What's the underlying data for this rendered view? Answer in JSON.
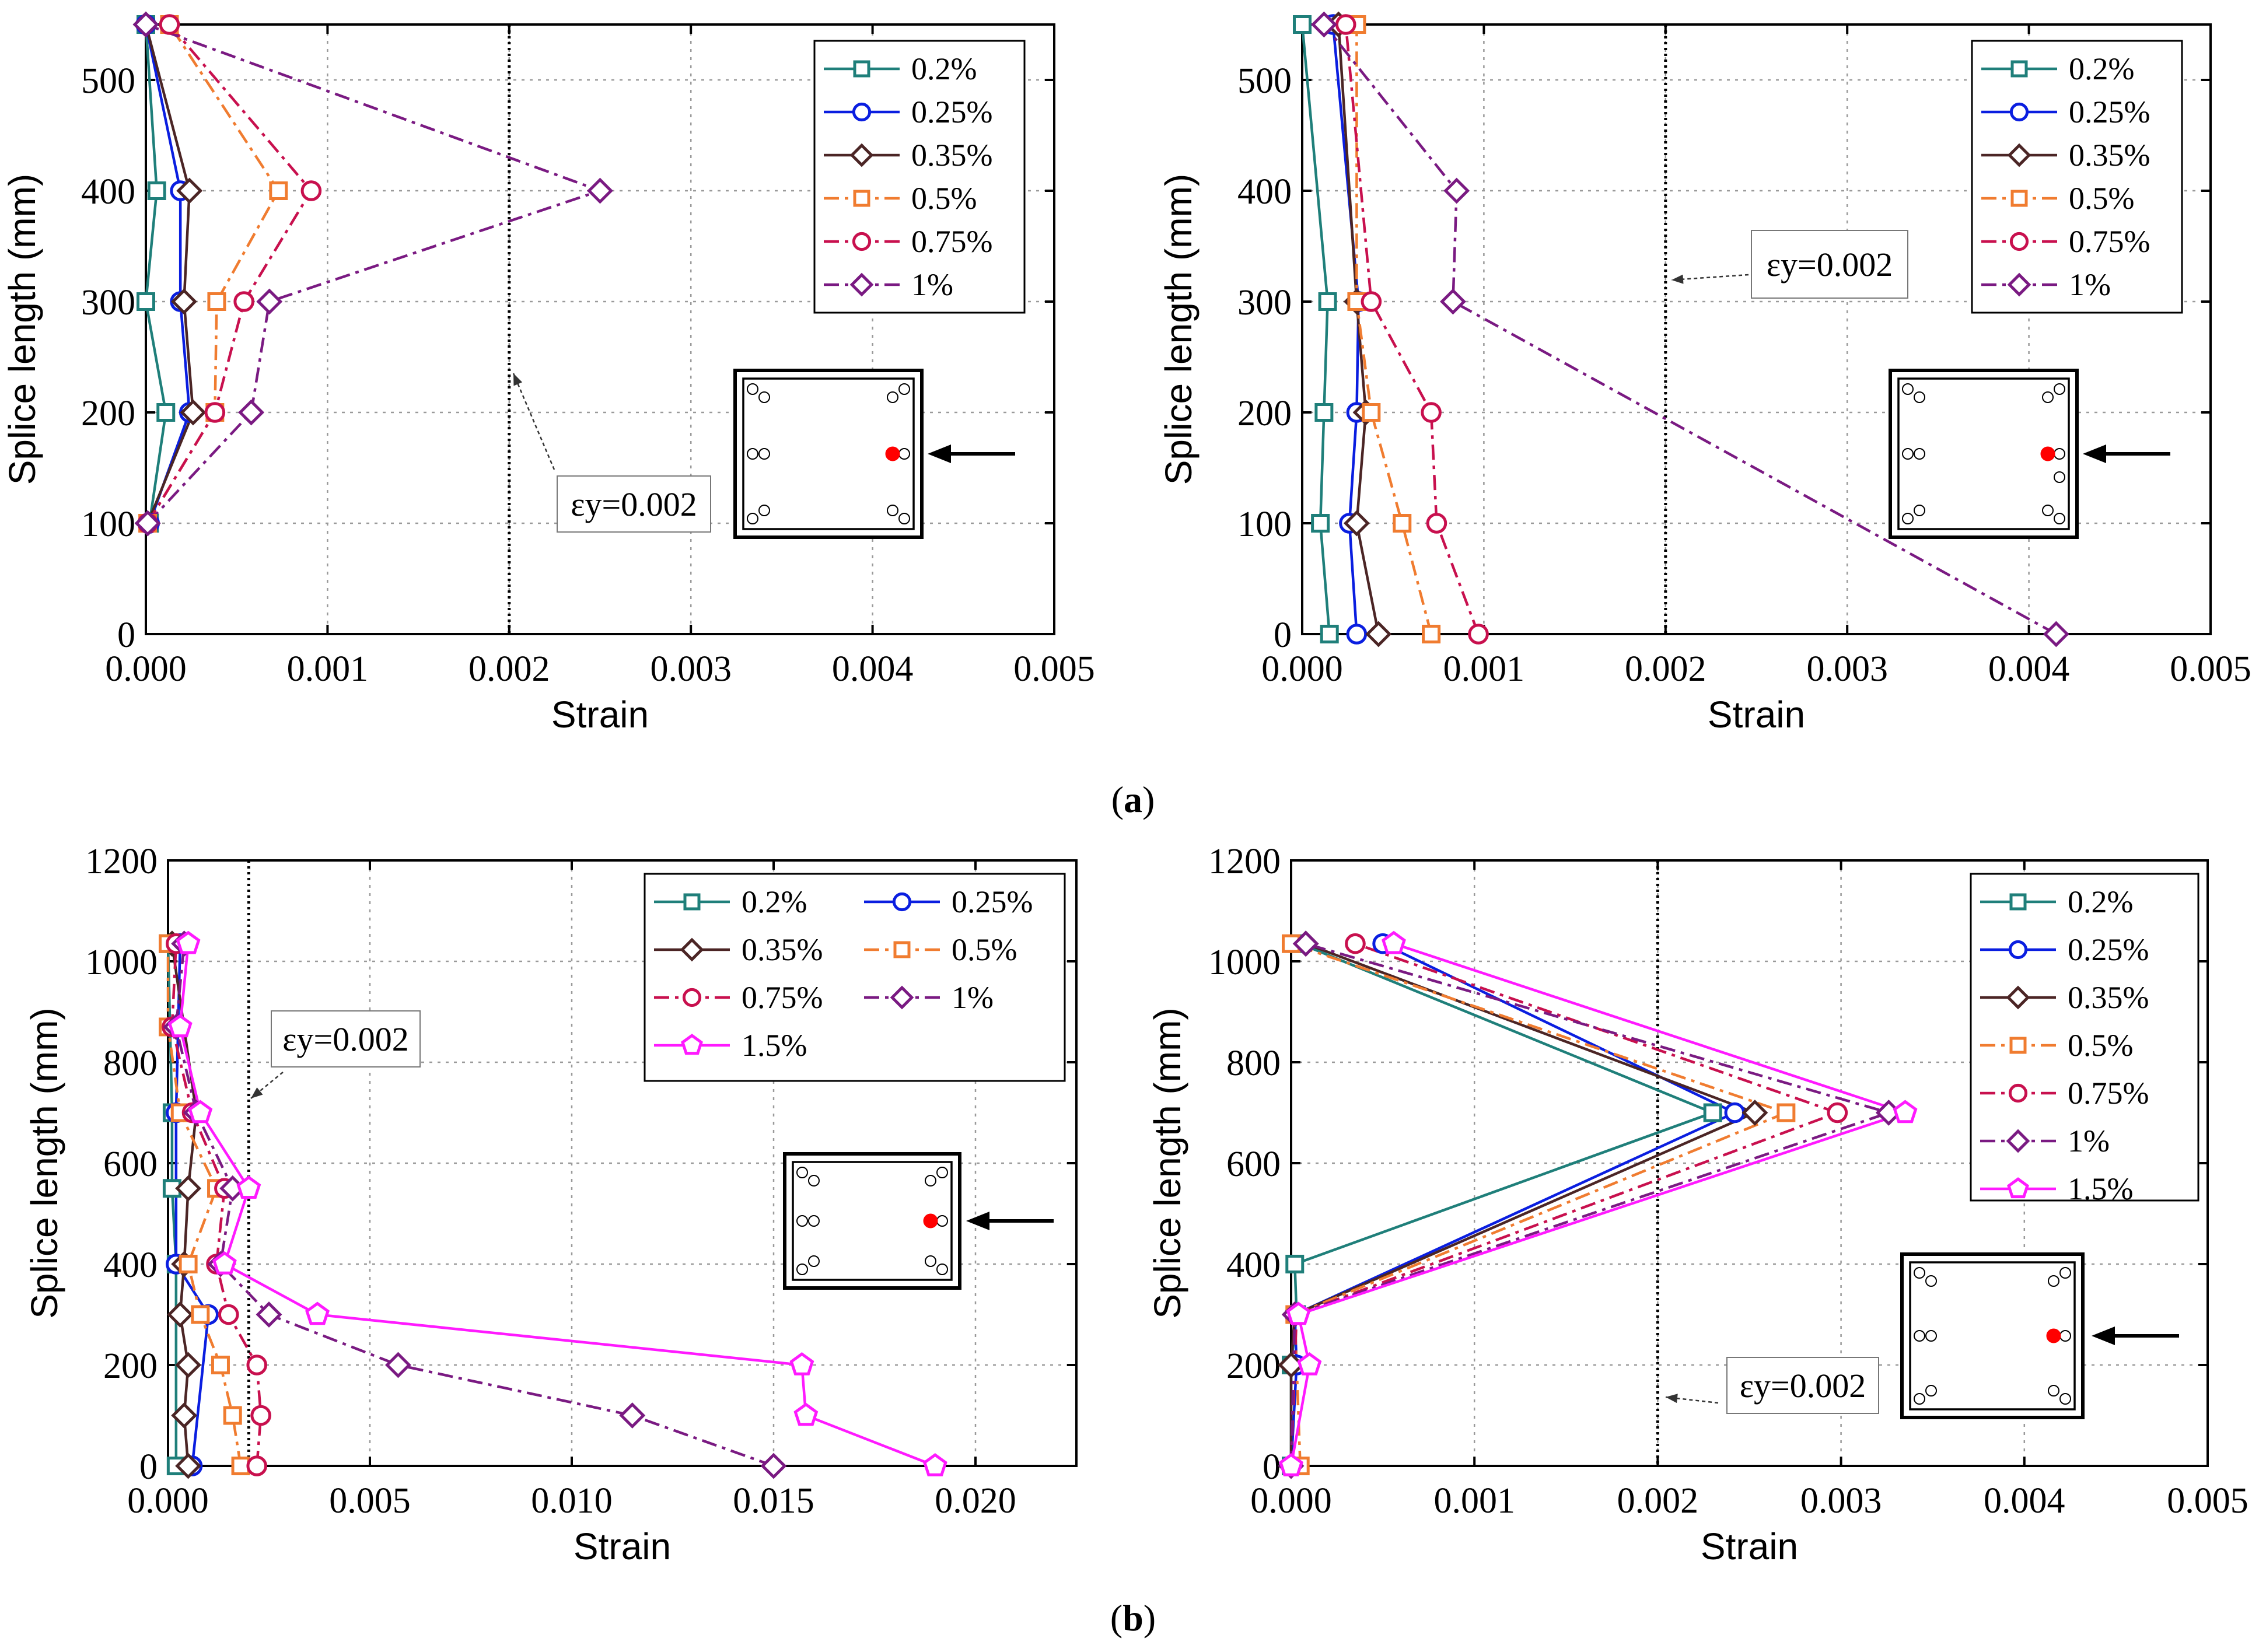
{
  "figure": {
    "caption_a": "(a)",
    "caption_b": "(b)",
    "caption_a_letter": "a",
    "caption_b_letter": "b"
  },
  "chart_data": [
    {
      "type": "line",
      "panel": "a-left",
      "xlabel": "Strain",
      "ylabel": "Splice length (mm)",
      "xlim": [
        0,
        0.005
      ],
      "ylim": [
        0,
        550
      ],
      "xticks": [
        "0.000",
        "0.001",
        "0.002",
        "0.003",
        "0.004",
        "0.005"
      ],
      "yticks": [
        "0",
        "100",
        "200",
        "300",
        "400",
        "500"
      ],
      "grid": true,
      "legend_placement": "top-right",
      "yield_line": 0.002,
      "annotation": "εy=0.002",
      "series": [
        {
          "name": "0.2%",
          "color": "#1f7f7a",
          "marker": "square",
          "dash": "solid",
          "points": [
            [
              2e-05,
              100
            ],
            [
              0.00011,
              200
            ],
            [
              0.0,
              300
            ],
            [
              6e-05,
              400
            ],
            [
              0.0,
              550
            ]
          ]
        },
        {
          "name": "0.25%",
          "color": "#0a1ee0",
          "marker": "circle",
          "dash": "solid",
          "points": [
            [
              2e-05,
              100
            ],
            [
              0.00024,
              200
            ],
            [
              0.00019,
              300
            ],
            [
              0.00019,
              400
            ],
            [
              0.0,
              550
            ]
          ]
        },
        {
          "name": "0.35%",
          "color": "#4b2525",
          "marker": "diamond",
          "dash": "solid",
          "points": [
            [
              1e-05,
              100
            ],
            [
              0.00026,
              200
            ],
            [
              0.00021,
              300
            ],
            [
              0.00024,
              400
            ],
            [
              0.0,
              550
            ]
          ]
        },
        {
          "name": "0.5%",
          "color": "#f07c30",
          "marker": "square-open",
          "dash": "dashdot",
          "points": [
            [
              1e-05,
              100
            ],
            [
              0.00038,
              200
            ],
            [
              0.00039,
              300
            ],
            [
              0.00073,
              400
            ],
            [
              0.00013,
              550
            ]
          ]
        },
        {
          "name": "0.75%",
          "color": "#c8104e",
          "marker": "circle",
          "dash": "dashdot",
          "points": [
            [
              1e-05,
              100
            ],
            [
              0.00038,
              200
            ],
            [
              0.00054,
              300
            ],
            [
              0.00091,
              400
            ],
            [
              0.00013,
              550
            ]
          ]
        },
        {
          "name": "1%",
          "color": "#7a1a82",
          "marker": "diamond",
          "dash": "dashdot",
          "points": [
            [
              1e-05,
              100
            ],
            [
              0.00058,
              200
            ],
            [
              0.00068,
              300
            ],
            [
              0.0025,
              400
            ],
            [
              0.0,
              550
            ]
          ]
        }
      ]
    },
    {
      "type": "line",
      "panel": "a-right",
      "xlabel": "Strain",
      "ylabel": "Splice length (mm)",
      "xlim": [
        0,
        0.005
      ],
      "ylim": [
        0,
        550
      ],
      "xticks": [
        "0.000",
        "0.001",
        "0.002",
        "0.003",
        "0.004",
        "0.005"
      ],
      "yticks": [
        "0",
        "100",
        "200",
        "300",
        "400",
        "500"
      ],
      "grid": true,
      "legend_placement": "top-right",
      "yield_line": 0.002,
      "annotation": "εy=0.002",
      "series": [
        {
          "name": "0.2%",
          "color": "#1f7f7a",
          "marker": "square",
          "dash": "solid",
          "points": [
            [
              0.00015,
              0
            ],
            [
              0.0001,
              100
            ],
            [
              0.00012,
              200
            ],
            [
              0.00014,
              300
            ],
            [
              0.0,
              550
            ]
          ]
        },
        {
          "name": "0.25%",
          "color": "#0a1ee0",
          "marker": "circle",
          "dash": "solid",
          "points": [
            [
              0.0003,
              0
            ],
            [
              0.00026,
              100
            ],
            [
              0.0003,
              200
            ],
            [
              0.00031,
              300
            ],
            [
              0.00017,
              550
            ]
          ]
        },
        {
          "name": "0.35%",
          "color": "#4b2525",
          "marker": "diamond",
          "dash": "solid",
          "points": [
            [
              0.00042,
              0
            ],
            [
              0.0003,
              100
            ],
            [
              0.00035,
              200
            ],
            [
              0.0003,
              300
            ],
            [
              0.0002,
              550
            ]
          ]
        },
        {
          "name": "0.5%",
          "color": "#f07c30",
          "marker": "square-open",
          "dash": "dashdot",
          "points": [
            [
              0.00071,
              0
            ],
            [
              0.00055,
              100
            ],
            [
              0.00038,
              200
            ],
            [
              0.0003,
              300
            ],
            [
              0.0003,
              550
            ]
          ]
        },
        {
          "name": "0.75%",
          "color": "#c8104e",
          "marker": "circle",
          "dash": "dashdot",
          "points": [
            [
              0.00097,
              0
            ],
            [
              0.00074,
              100
            ],
            [
              0.00071,
              200
            ],
            [
              0.00038,
              300
            ],
            [
              0.00024,
              550
            ]
          ]
        },
        {
          "name": "1%",
          "color": "#7a1a82",
          "marker": "diamond",
          "dash": "dashdot",
          "points": [
            [
              0.00415,
              0
            ],
            [
              0.00083,
              300
            ],
            [
              0.00085,
              400
            ],
            [
              0.00012,
              550
            ]
          ]
        }
      ]
    },
    {
      "type": "line",
      "panel": "b-left",
      "xlabel": "Strain",
      "ylabel": "Splice length (mm)",
      "xlim": [
        0,
        0.0225
      ],
      "ylim": [
        0,
        1200
      ],
      "xticks": [
        "0.000",
        "0.005",
        "0.010",
        "0.015",
        "0.020"
      ],
      "yticks": [
        "0",
        "200",
        "400",
        "600",
        "800",
        "1000",
        "1200"
      ],
      "grid": true,
      "legend_placement": "top-right",
      "yield_line": 0.002,
      "annotation": "εy=0.002",
      "series": [
        {
          "name": "0.2%",
          "color": "#1f7f7a",
          "marker": "square",
          "dash": "solid",
          "points": [
            [
              0.0002,
              0
            ],
            [
              0.0002,
              400
            ],
            [
              0.0001,
              550
            ],
            [
              0.0001,
              700
            ],
            [
              0.0,
              1035
            ]
          ]
        },
        {
          "name": "0.25%",
          "color": "#0a1ee0",
          "marker": "circle",
          "dash": "solid",
          "points": [
            [
              0.0006,
              0
            ],
            [
              0.001,
              300
            ],
            [
              0.0002,
              400
            ],
            [
              0.0002,
              700
            ],
            [
              0.0003,
              1035
            ]
          ]
        },
        {
          "name": "0.35%",
          "color": "#4b2525",
          "marker": "diamond",
          "dash": "solid",
          "points": [
            [
              0.0005,
              0
            ],
            [
              0.0004,
              100
            ],
            [
              0.0005,
              200
            ],
            [
              0.0003,
              300
            ],
            [
              0.0004,
              400
            ],
            [
              0.0005,
              550
            ],
            [
              0.0007,
              700
            ],
            [
              0.0001,
              1035
            ]
          ]
        },
        {
          "name": "0.5%",
          "color": "#f07c30",
          "marker": "square-open",
          "dash": "dashdot",
          "points": [
            [
              0.0018,
              0
            ],
            [
              0.0016,
              100
            ],
            [
              0.0013,
              200
            ],
            [
              0.0008,
              300
            ],
            [
              0.0005,
              400
            ],
            [
              0.0012,
              550
            ],
            [
              0.0003,
              700
            ],
            [
              0.0,
              870
            ],
            [
              0.0,
              1035
            ]
          ]
        },
        {
          "name": "0.75%",
          "color": "#c8104e",
          "marker": "circle",
          "dash": "dashdot",
          "points": [
            [
              0.0022,
              0
            ],
            [
              0.0023,
              100
            ],
            [
              0.0022,
              200
            ],
            [
              0.0015,
              300
            ],
            [
              0.0012,
              400
            ],
            [
              0.0014,
              550
            ],
            [
              0.0006,
              700
            ],
            [
              0.0001,
              870
            ],
            [
              0.0002,
              1035
            ]
          ]
        },
        {
          "name": "1%",
          "color": "#7a1a82",
          "marker": "diamond",
          "dash": "dashdot",
          "points": [
            [
              0.015,
              0
            ],
            [
              0.0115,
              100
            ],
            [
              0.0057,
              200
            ],
            [
              0.0025,
              300
            ],
            [
              0.0013,
              400
            ],
            [
              0.0016,
              550
            ],
            [
              0.0007,
              700
            ],
            [
              0.0002,
              870
            ],
            [
              0.0004,
              1035
            ]
          ]
        },
        {
          "name": "1.5%",
          "color": "#ff1aff",
          "marker": "pentagon",
          "dash": "solid",
          "points": [
            [
              0.019,
              0
            ],
            [
              0.0158,
              100
            ],
            [
              0.0157,
              200
            ],
            [
              0.0037,
              300
            ],
            [
              0.0014,
              400
            ],
            [
              0.002,
              550
            ],
            [
              0.0008,
              700
            ],
            [
              0.0003,
              870
            ],
            [
              0.0005,
              1035
            ]
          ]
        }
      ]
    },
    {
      "type": "line",
      "panel": "b-right",
      "xlabel": "Strain",
      "ylabel": "Splice length (mm)",
      "xlim": [
        0,
        0.005
      ],
      "ylim": [
        0,
        1200
      ],
      "xticks": [
        "0.000",
        "0.001",
        "0.002",
        "0.003",
        "0.004",
        "0.005"
      ],
      "yticks": [
        "0",
        "200",
        "400",
        "600",
        "800",
        "1000",
        "1200"
      ],
      "grid": true,
      "legend_placement": "top-right",
      "yield_line": 0.002,
      "annotation": "εy=0.002",
      "series": [
        {
          "name": "0.2%",
          "color": "#1f7f7a",
          "marker": "square",
          "dash": "solid",
          "points": [
            [
              0.0,
              0
            ],
            [
              0.0,
              200
            ],
            [
              3e-05,
              300
            ],
            [
              2e-05,
              400
            ],
            [
              0.0023,
              700
            ],
            [
              5e-05,
              1035
            ]
          ]
        },
        {
          "name": "0.25%",
          "color": "#0a1ee0",
          "marker": "circle",
          "dash": "solid",
          "points": [
            [
              0.0,
              0
            ],
            [
              3e-05,
              200
            ],
            [
              2e-05,
              300
            ],
            [
              0.00242,
              700
            ],
            [
              0.0005,
              1035
            ]
          ]
        },
        {
          "name": "0.35%",
          "color": "#4b2525",
          "marker": "diamond",
          "dash": "solid",
          "points": [
            [
              0.0,
              0
            ],
            [
              0.0,
              200
            ],
            [
              2e-05,
              300
            ],
            [
              0.00253,
              700
            ],
            [
              8e-05,
              1035
            ]
          ]
        },
        {
          "name": "0.5%",
          "color": "#f07c30",
          "marker": "square-open",
          "dash": "dashdot",
          "points": [
            [
              5e-05,
              0
            ],
            [
              2e-05,
              300
            ],
            [
              0.0027,
              700
            ],
            [
              0.0,
              1035
            ]
          ]
        },
        {
          "name": "0.75%",
          "color": "#c8104e",
          "marker": "circle",
          "dash": "dashdot",
          "points": [
            [
              0.0,
              0
            ],
            [
              3e-05,
              300
            ],
            [
              0.00298,
              700
            ],
            [
              0.00035,
              1035
            ]
          ]
        },
        {
          "name": "1%",
          "color": "#7a1a82",
          "marker": "diamond",
          "dash": "dashdot",
          "points": [
            [
              0.0,
              0
            ],
            [
              2e-05,
              300
            ],
            [
              0.00326,
              700
            ],
            [
              8e-05,
              1035
            ]
          ]
        },
        {
          "name": "1.5%",
          "color": "#ff1aff",
          "marker": "pentagon",
          "dash": "solid",
          "points": [
            [
              0.0,
              0
            ],
            [
              0.0001,
              200
            ],
            [
              4e-05,
              300
            ],
            [
              0.00335,
              700
            ],
            [
              0.00056,
              1035
            ]
          ]
        }
      ]
    }
  ]
}
